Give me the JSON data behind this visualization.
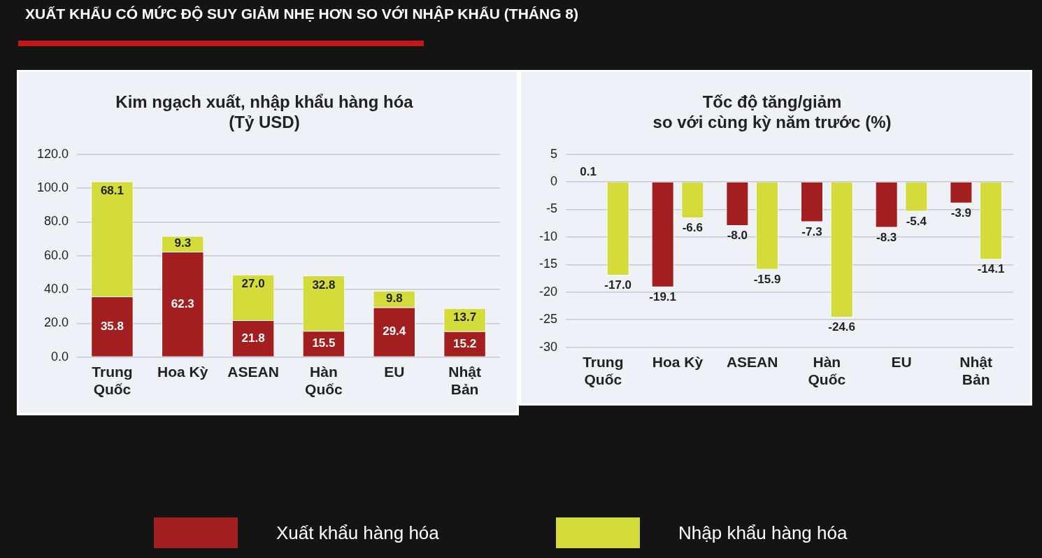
{
  "chart_data": [
    {
      "type": "other",
      "title": "XUẤT KHẨU CÓ MỨC ĐỘ SUY GIẢM NHẸ HƠN SO VỚI NHẬP KHẨU (THÁNG 8)"
    },
    {
      "type": "bar",
      "stacked": true,
      "title": "Kim ngạch xuất, nhập khẩu hàng hóa\n(Tỷ USD)",
      "categories": [
        "Trung Quốc",
        "Hoa Kỳ",
        "ASEAN",
        "Hàn Quốc",
        "EU",
        "Nhật Bản"
      ],
      "ylim": [
        0,
        120
      ],
      "yticks": [
        {
          "value": 0,
          "label": "0.0"
        },
        {
          "value": 20,
          "label": "20.0"
        },
        {
          "value": 40,
          "label": "40.0"
        },
        {
          "value": 60,
          "label": "60.0"
        },
        {
          "value": 80,
          "label": "80.0"
        },
        {
          "value": 100,
          "label": "100.0"
        },
        {
          "value": 120,
          "label": "120.0"
        }
      ],
      "grid": "y",
      "legend": "bottom",
      "series": [
        {
          "name": "Xuất khẩu hàng hóa",
          "color": "#a31f1f",
          "values": [
            35.8,
            62.3,
            21.8,
            15.5,
            29.4,
            15.2
          ],
          "value_labels": [
            "35.8",
            "62.3",
            "21.8",
            "15.5",
            "29.4",
            "15.2"
          ]
        },
        {
          "name": "Nhập khẩu hàng hóa",
          "color": "#d3dc3a",
          "values": [
            68.1,
            9.3,
            27.0,
            32.8,
            9.8,
            13.7
          ],
          "value_labels": [
            "68.1",
            "9.3",
            "27.0",
            "32.8",
            "9.8",
            "13.7"
          ]
        }
      ]
    },
    {
      "type": "bar",
      "title": "Tốc độ tăng/giảm\nso với cùng kỳ năm trước (%)",
      "categories": [
        "Trung Quốc",
        "Hoa Kỳ",
        "ASEAN",
        "Hàn Quốc",
        "EU",
        "Nhật Bản"
      ],
      "ylim": [
        -30,
        5
      ],
      "yticks": [
        -30,
        -25,
        -20,
        -15,
        -10,
        -5,
        0,
        5
      ],
      "grid": "y",
      "series": [
        {
          "color": "#a31f1f",
          "values": [
            0.1,
            -19.1,
            -8.0,
            -7.3,
            -8.3,
            -3.9
          ],
          "value_labels": [
            "0.1",
            "-19.1",
            "-8.0",
            "-7.3",
            "-8.3",
            "-3.9"
          ]
        },
        {
          "color": "#d3dc3a",
          "values": [
            -17.0,
            -6.6,
            -15.9,
            -24.6,
            -5.4,
            -14.1
          ],
          "value_labels": [
            "-17.0",
            "-6.6",
            "-15.9",
            "-24.6",
            "-5.4",
            "-14.1"
          ]
        }
      ]
    }
  ]
}
